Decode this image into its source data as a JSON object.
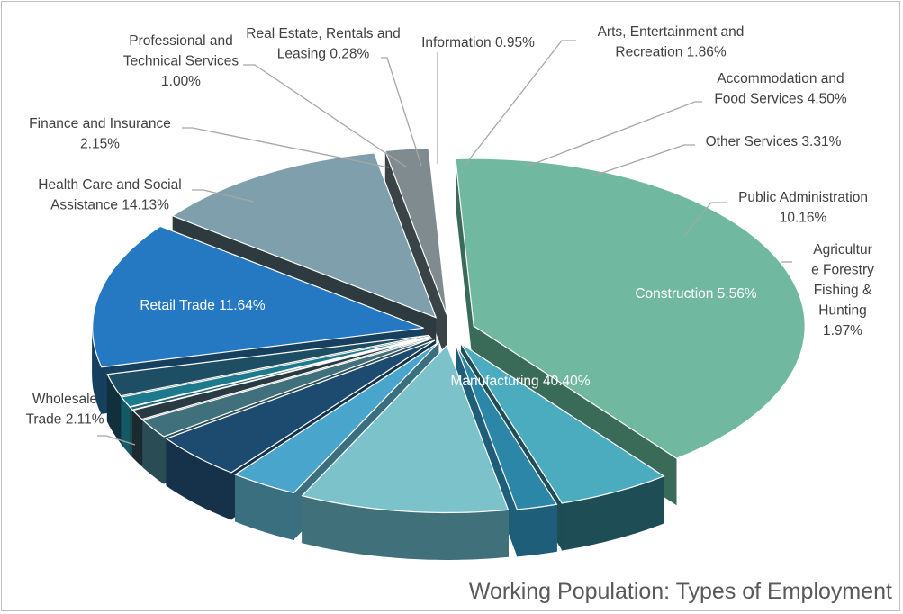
{
  "chart_data": {
    "type": "pie",
    "title": "Working Population: Types of Employment",
    "categories": [
      "Manufacturing",
      "Construction",
      "Agriculture Forestry Fishing & Hunting",
      "Public Administration",
      "Other Services",
      "Accommodation and Food Services",
      "Arts, Entertainment and Recreation",
      "Information",
      "Real Estate, Rentals and Leasing",
      "Professional and Technical Services",
      "Finance and Insurance",
      "Health Care and Social Assistance",
      "Retail Trade",
      "Wholesale Trade"
    ],
    "values": [
      40.4,
      5.56,
      1.97,
      10.16,
      3.31,
      4.5,
      1.86,
      0.95,
      0.28,
      1.0,
      2.15,
      14.13,
      11.64,
      2.11
    ],
    "unit": "%",
    "style": "3d-exploded",
    "legend": "none",
    "labels": [
      [
        "Manufacturing 40.40%"
      ],
      [
        "Construction 5.56%"
      ],
      [
        "Agricultur",
        "e Forestry",
        "Fishing &",
        "Hunting",
        "1.97%"
      ],
      [
        "Public Administration",
        "10.16%"
      ],
      [
        "Other Services  3.31%"
      ],
      [
        "Accommodation and",
        "Food Services 4.50%"
      ],
      [
        "Arts, Entertainment and",
        "Recreation 1.86%"
      ],
      [
        "Information 0.95%"
      ],
      [
        "Real Estate, Rentals and",
        "Leasing 0.28%"
      ],
      [
        "Professional and",
        "Technical Services",
        "1.00%"
      ],
      [
        "Finance and Insurance",
        "2.15%"
      ],
      [
        "Health Care and Social",
        "Assistance 14.13%"
      ],
      [
        "Retail Trade 11.64%"
      ],
      [
        "Wholesale",
        "Trade 2.11%"
      ]
    ],
    "colors": [
      "#71b8a1",
      "#4bacbf",
      "#2b86a7",
      "#7cc2cb",
      "#4aa5cc",
      "#1d4b6f",
      "#40707b",
      "#2a3a42",
      "#23646e",
      "#1d7a8c",
      "#1d4e63",
      "#2479c2",
      "#7f9fac",
      "#7f8b8e"
    ],
    "side_colors": [
      "#3a6a58",
      "#1f4d55",
      "#1e5e78",
      "#40707a",
      "#3a6f80",
      "#15324a",
      "#2a4c54",
      "#1a2a30",
      "#184a52",
      "#145a66",
      "#122f3e",
      "#173f5e",
      "#2d3a40",
      "#3a4447"
    ]
  }
}
